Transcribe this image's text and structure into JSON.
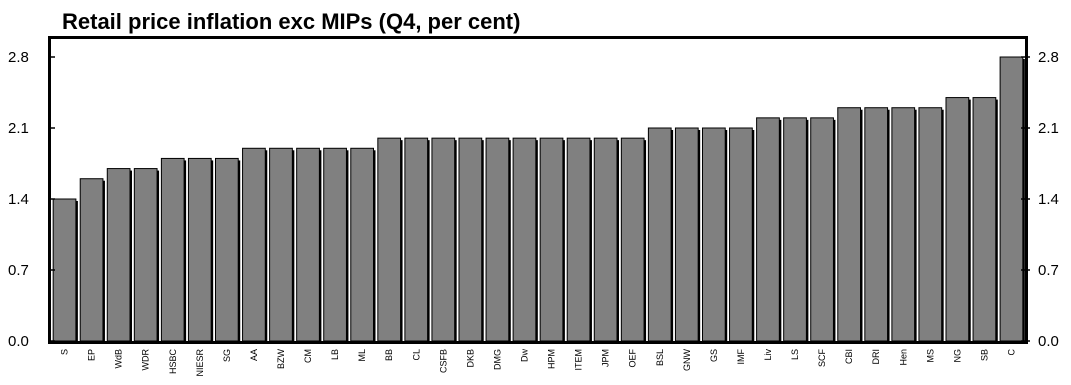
{
  "chart_data": {
    "type": "bar",
    "title": "Retail price inflation exc MIPs (Q4, per cent)",
    "categories": [
      "S",
      "EP",
      "WdB",
      "WDR",
      "HSBC",
      "NIESR",
      "SG",
      "AA",
      "BZW",
      "CM",
      "LB",
      "ML",
      "BB",
      "CL",
      "CSFB",
      "DKB",
      "DMG",
      "Dw",
      "HPM",
      "ITEM",
      "JPM",
      "OEF",
      "BSL",
      "GNW",
      "GS",
      "IMF",
      "Liv",
      "LS",
      "SCF",
      "CBI",
      "DRI",
      "Hen",
      "MS",
      "NG",
      "SB",
      "C"
    ],
    "values": [
      1.4,
      1.6,
      1.7,
      1.7,
      1.8,
      1.8,
      1.8,
      1.9,
      1.9,
      1.9,
      1.9,
      1.9,
      2.0,
      2.0,
      2.0,
      2.0,
      2.0,
      2.0,
      2.0,
      2.0,
      2.0,
      2.0,
      2.1,
      2.1,
      2.1,
      2.1,
      2.2,
      2.2,
      2.2,
      2.3,
      2.3,
      2.3,
      2.3,
      2.4,
      2.4,
      2.8
    ],
    "ylim": [
      0,
      2.8
    ],
    "yticks": [
      "0.0",
      "0.7",
      "1.4",
      "2.1",
      "2.8"
    ],
    "bar_color": "#808080",
    "grid": false,
    "legend": "none"
  }
}
